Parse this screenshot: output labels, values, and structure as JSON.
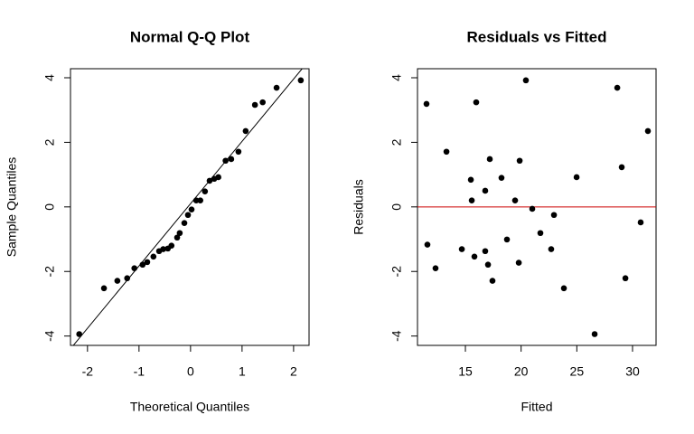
{
  "chart_data": [
    {
      "type": "scatter",
      "title": "Normal Q-Q Plot",
      "x_label": "Theoretical Quantiles",
      "y_label": "Sample Quantiles",
      "color": "#000000",
      "x": [
        -2.16,
        -1.68,
        -1.42,
        -1.23,
        -1.09,
        -0.93,
        -0.84,
        -0.72,
        -0.61,
        -0.53,
        -0.44,
        -0.37,
        -0.26,
        -0.21,
        -0.12,
        -0.05,
        0.02,
        0.11,
        0.19,
        0.28,
        0.37,
        0.46,
        0.54,
        0.68,
        0.79,
        0.93,
        1.07,
        1.25,
        1.4,
        1.67,
        2.14
      ],
      "values": [
        -3.94,
        -2.52,
        -2.29,
        -2.21,
        -1.9,
        -1.79,
        -1.71,
        -1.54,
        -1.37,
        -1.31,
        -1.29,
        -1.2,
        -0.95,
        -0.81,
        -0.5,
        -0.25,
        -0.08,
        0.2,
        0.2,
        0.48,
        0.81,
        0.87,
        0.92,
        1.43,
        1.48,
        1.71,
        2.35,
        3.16,
        3.24,
        3.69,
        3.92
      ],
      "reference_line": {
        "intercept": 0.1,
        "slope": 1.93,
        "color": "#000000"
      },
      "xlim": [
        -2.33,
        2.3
      ],
      "ylim": [
        -4.29,
        4.28
      ],
      "xticks": [
        -2,
        -1,
        0,
        1,
        2
      ],
      "yticks": [
        -4,
        -2,
        0,
        2,
        4
      ]
    },
    {
      "type": "scatter",
      "title": "Residuals vs Fitted",
      "x_label": "Fitted",
      "y_label": "Residuals",
      "color": "#000000",
      "x": [
        11.51,
        11.59,
        12.32,
        13.3,
        14.68,
        15.49,
        15.57,
        15.81,
        15.97,
        16.78,
        16.78,
        17.03,
        17.19,
        17.43,
        18.24,
        18.73,
        19.46,
        19.87,
        19.79,
        20.43,
        21.0,
        21.73,
        22.7,
        22.95,
        23.84,
        24.98,
        26.6,
        28.63,
        29.03,
        29.36,
        30.73,
        31.38
      ],
      "values": [
        3.19,
        -1.17,
        -1.9,
        1.71,
        -1.31,
        0.84,
        0.2,
        -1.54,
        3.24,
        0.5,
        -1.37,
        -1.79,
        1.48,
        -2.29,
        0.9,
        -1.01,
        0.2,
        1.43,
        -1.73,
        3.92,
        -0.06,
        -0.81,
        -1.31,
        -0.25,
        -2.52,
        0.92,
        -3.94,
        3.69,
        1.23,
        -2.21,
        -0.48,
        2.35
      ],
      "hline": {
        "value": 0,
        "color": "#cc0000"
      },
      "xlim": [
        10.7,
        32.11
      ],
      "ylim": [
        -4.29,
        4.28
      ],
      "xticks": [
        15,
        20,
        25,
        30
      ],
      "yticks": [
        -4,
        -2,
        0,
        2,
        4
      ]
    }
  ]
}
